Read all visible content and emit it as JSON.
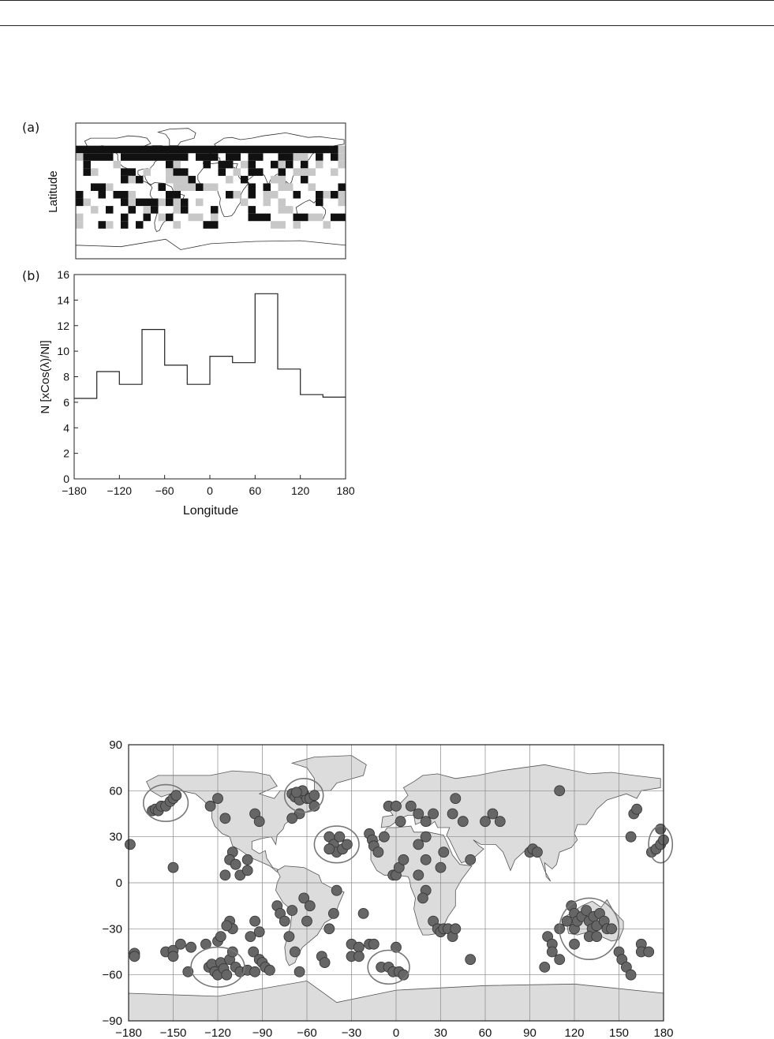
{
  "panel_a": {
    "label": "(a)",
    "ylabel": "Latitude"
  },
  "chart_data": [
    {
      "type": "bar",
      "panel": "(b)",
      "style": "step",
      "title": "",
      "xlabel": "Longitude",
      "ylabel": "N [xCos(λ)/Nl]",
      "xlim": [
        -180,
        180
      ],
      "ylim": [
        0,
        16
      ],
      "xticks": [
        "-180",
        "-120",
        "-60",
        "0",
        "60",
        "120",
        "180"
      ],
      "yticks": [
        "0",
        "2",
        "4",
        "6",
        "8",
        "10",
        "12",
        "14",
        "16"
      ],
      "bin_edges": [
        -180,
        -150,
        -120,
        -90,
        -60,
        -30,
        0,
        30,
        60,
        90,
        120,
        150,
        180
      ],
      "values": [
        6.3,
        8.4,
        7.4,
        11.7,
        8.9,
        7.4,
        9.6,
        9.1,
        14.5,
        8.6,
        6.6,
        6.4
      ],
      "grid": false
    },
    {
      "type": "scatter",
      "title": "",
      "xlabel": "",
      "ylabel": "",
      "xlim": [
        -180,
        180
      ],
      "ylim": [
        -90,
        90
      ],
      "xticks": [
        "-180",
        "-150",
        "-120",
        "-90",
        "-60",
        "-30",
        "0",
        "30",
        "60",
        "90",
        "120",
        "150",
        "180"
      ],
      "yticks": [
        "-90",
        "-60",
        "-30",
        "0",
        "30",
        "60",
        "90"
      ],
      "grid": true,
      "points": [
        [
          -179,
          25
        ],
        [
          -176,
          -46
        ],
        [
          -176,
          -48
        ],
        [
          -164,
          47
        ],
        [
          -162,
          48
        ],
        [
          -160,
          47
        ],
        [
          -158,
          50
        ],
        [
          -155,
          50
        ],
        [
          -152,
          53
        ],
        [
          -150,
          55
        ],
        [
          -148,
          57
        ],
        [
          -150,
          10
        ],
        [
          -155,
          -45
        ],
        [
          -150,
          -44
        ],
        [
          -150,
          -48
        ],
        [
          -145,
          -40
        ],
        [
          -138,
          -42
        ],
        [
          -140,
          -58
        ],
        [
          -128,
          -40
        ],
        [
          -126,
          -55
        ],
        [
          -124,
          -53
        ],
        [
          -122,
          -58
        ],
        [
          -120,
          -60
        ],
        [
          -118,
          -52
        ],
        [
          -116,
          -56
        ],
        [
          -114,
          -60
        ],
        [
          -112,
          -50
        ],
        [
          -110,
          -45
        ],
        [
          -120,
          -38
        ],
        [
          -118,
          -35
        ],
        [
          -108,
          -55
        ],
        [
          -105,
          -58
        ],
        [
          -100,
          -57
        ],
        [
          -95,
          -58
        ],
        [
          -96,
          -45
        ],
        [
          -92,
          -50
        ],
        [
          -90,
          -52
        ],
        [
          -88,
          -55
        ],
        [
          -85,
          -57
        ],
        [
          -112,
          -25
        ],
        [
          -110,
          -30
        ],
        [
          -114,
          -28
        ],
        [
          -95,
          -25
        ],
        [
          -92,
          -32
        ],
        [
          -98,
          -35
        ],
        [
          -125,
          50
        ],
        [
          -120,
          55
        ],
        [
          -115,
          42
        ],
        [
          -110,
          20
        ],
        [
          -112,
          15
        ],
        [
          -108,
          12
        ],
        [
          -105,
          5
        ],
        [
          -115,
          5
        ],
        [
          -100,
          8
        ],
        [
          -100,
          15
        ],
        [
          -95,
          45
        ],
        [
          -92,
          40
        ],
        [
          -70,
          58
        ],
        [
          -68,
          56
        ],
        [
          -65,
          54
        ],
        [
          -62,
          58
        ],
        [
          -60,
          55
        ],
        [
          -58,
          55
        ],
        [
          -55,
          57
        ],
        [
          -55,
          50
        ],
        [
          -63,
          60
        ],
        [
          -67,
          59
        ],
        [
          -65,
          45
        ],
        [
          -70,
          42
        ],
        [
          -80,
          -15
        ],
        [
          -78,
          -20
        ],
        [
          -75,
          -25
        ],
        [
          -72,
          -35
        ],
        [
          -70,
          -18
        ],
        [
          -68,
          -45
        ],
        [
          -65,
          -58
        ],
        [
          -62,
          -10
        ],
        [
          -60,
          -25
        ],
        [
          -58,
          -15
        ],
        [
          -45,
          -30
        ],
        [
          -42,
          -20
        ],
        [
          -40,
          -5
        ],
        [
          -50,
          -48
        ],
        [
          -48,
          -52
        ],
        [
          -45,
          30
        ],
        [
          -42,
          25
        ],
        [
          -40,
          20
        ],
        [
          -38,
          30
        ],
        [
          -36,
          22
        ],
        [
          -45,
          22
        ],
        [
          -33,
          25
        ],
        [
          -30,
          -40
        ],
        [
          -30,
          -48
        ],
        [
          -25,
          -42
        ],
        [
          -25,
          -48
        ],
        [
          -22,
          -20
        ],
        [
          -18,
          -40
        ],
        [
          -15,
          -40
        ],
        [
          -10,
          -55
        ],
        [
          -5,
          -55
        ],
        [
          -2,
          -58
        ],
        [
          2,
          -58
        ],
        [
          5,
          -60
        ],
        [
          0,
          -42
        ],
        [
          -18,
          32
        ],
        [
          -16,
          28
        ],
        [
          -15,
          24
        ],
        [
          -12,
          20
        ],
        [
          -8,
          30
        ],
        [
          -5,
          50
        ],
        [
          -2,
          5
        ],
        [
          0,
          5
        ],
        [
          2,
          10
        ],
        [
          5,
          15
        ],
        [
          3,
          40
        ],
        [
          0,
          50
        ],
        [
          10,
          50
        ],
        [
          15,
          45
        ],
        [
          20,
          40
        ],
        [
          25,
          45
        ],
        [
          20,
          30
        ],
        [
          15,
          25
        ],
        [
          20,
          15
        ],
        [
          15,
          5
        ],
        [
          20,
          -5
        ],
        [
          18,
          -10
        ],
        [
          25,
          -25
        ],
        [
          28,
          -30
        ],
        [
          30,
          -32
        ],
        [
          32,
          -30
        ],
        [
          35,
          -30
        ],
        [
          38,
          -35
        ],
        [
          40,
          -30
        ],
        [
          30,
          10
        ],
        [
          32,
          20
        ],
        [
          38,
          45
        ],
        [
          40,
          55
        ],
        [
          45,
          40
        ],
        [
          50,
          15
        ],
        [
          50,
          -50
        ],
        [
          60,
          40
        ],
        [
          65,
          45
        ],
        [
          70,
          40
        ],
        [
          90,
          20
        ],
        [
          92,
          22
        ],
        [
          95,
          20
        ],
        [
          100,
          -55
        ],
        [
          102,
          -35
        ],
        [
          105,
          -40
        ],
        [
          105,
          -45
        ],
        [
          110,
          -30
        ],
        [
          110,
          -50
        ],
        [
          115,
          -25
        ],
        [
          118,
          -15
        ],
        [
          120,
          -20
        ],
        [
          120,
          -30
        ],
        [
          122,
          -25
        ],
        [
          125,
          -22
        ],
        [
          128,
          -18
        ],
        [
          130,
          -25
        ],
        [
          132,
          -30
        ],
        [
          133,
          -22
        ],
        [
          135,
          -28
        ],
        [
          137,
          -20
        ],
        [
          140,
          -25
        ],
        [
          142,
          -30
        ],
        [
          145,
          -30
        ],
        [
          130,
          -35
        ],
        [
          135,
          -35
        ],
        [
          120,
          -40
        ],
        [
          110,
          60
        ],
        [
          158,
          30
        ],
        [
          160,
          45
        ],
        [
          162,
          48
        ],
        [
          150,
          -45
        ],
        [
          152,
          -50
        ],
        [
          155,
          -55
        ],
        [
          158,
          -60
        ],
        [
          165,
          -40
        ],
        [
          165,
          -45
        ],
        [
          170,
          -45
        ],
        [
          172,
          20
        ],
        [
          175,
          22
        ],
        [
          178,
          25
        ],
        [
          180,
          28
        ],
        [
          178,
          35
        ]
      ],
      "circles": [
        [
          -155,
          52,
          15,
          12
        ],
        [
          -62,
          57,
          13,
          11
        ],
        [
          -40,
          25,
          15,
          12
        ],
        [
          -5,
          -55,
          14,
          11
        ],
        [
          -120,
          -55,
          18,
          13
        ],
        [
          130,
          -30,
          20,
          20
        ],
        [
          178,
          25,
          8,
          12
        ]
      ]
    }
  ]
}
